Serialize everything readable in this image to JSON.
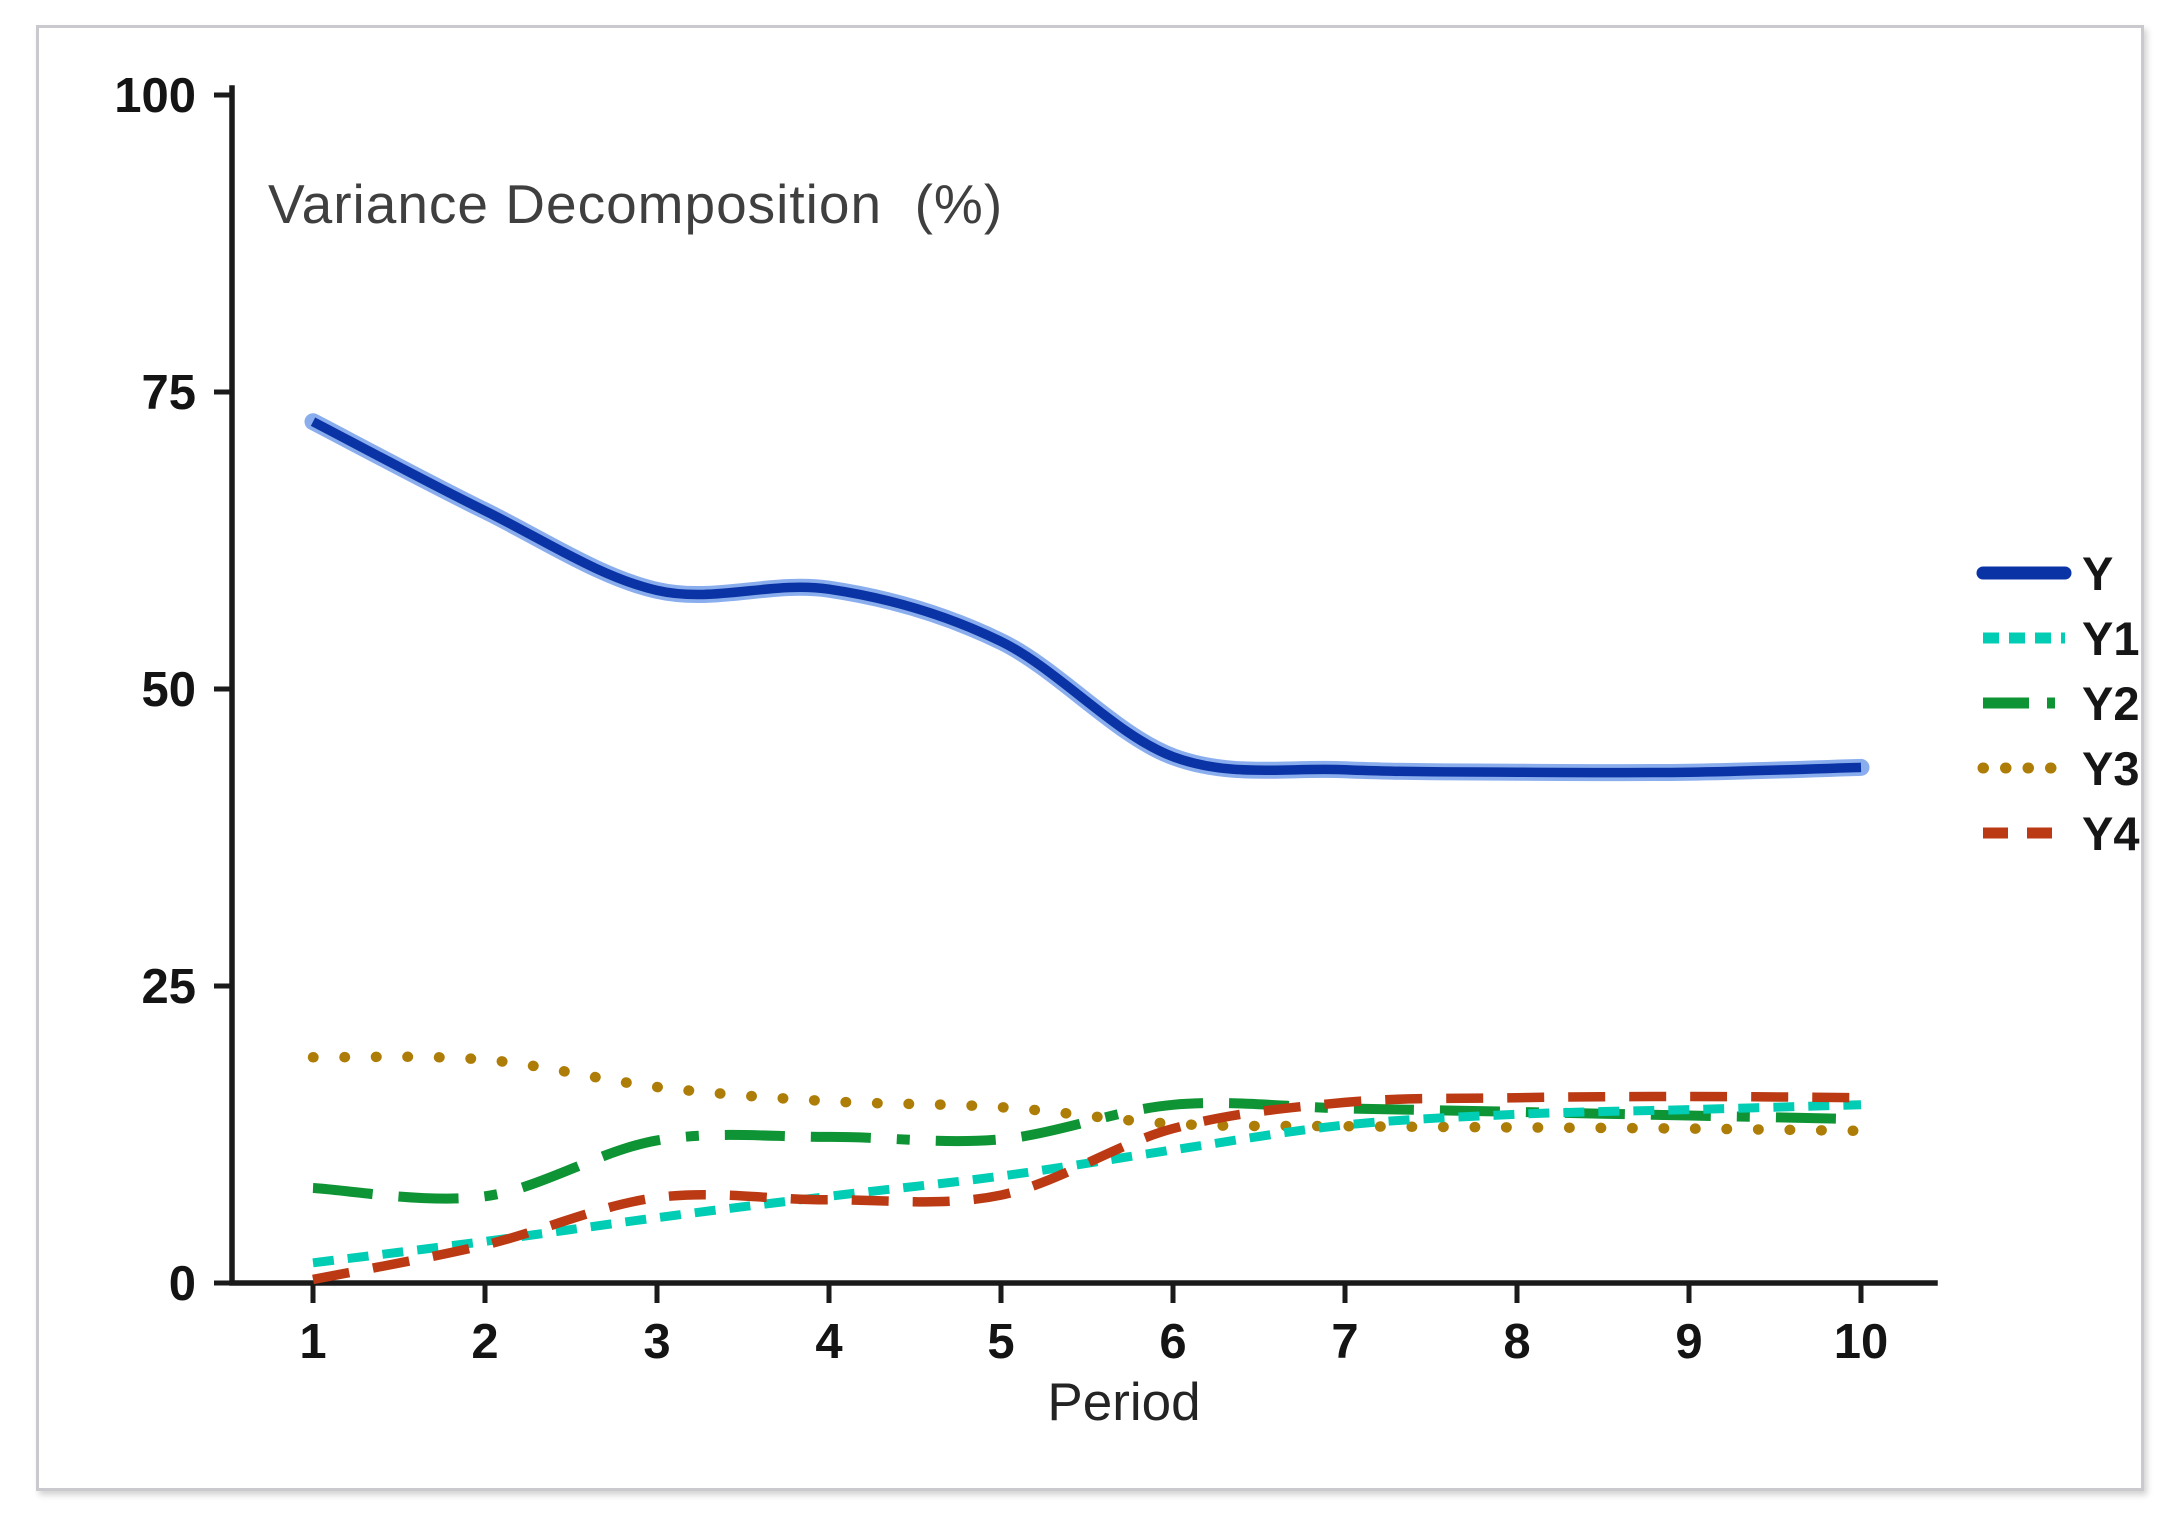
{
  "figure": {
    "title": "Variance Decomposition  (%)",
    "xlabel": "Period"
  },
  "chart_data": {
    "type": "line",
    "title": "Variance Decomposition  (%)",
    "xlabel": "Period",
    "ylabel": "",
    "x": [
      1,
      2,
      3,
      4,
      5,
      6,
      7,
      8,
      9,
      10
    ],
    "xlim": [
      0.55,
      10.45
    ],
    "ylim": [
      0,
      100
    ],
    "yticks": [
      0,
      25,
      50,
      75,
      100
    ],
    "grid": false,
    "legend_position": "right",
    "axis_color": "#1a1a1a",
    "series": [
      {
        "name": "Y",
        "style": "solid",
        "color": "#0a34a6",
        "halo_color": "#6d9ae8",
        "values": [
          72.5,
          65.0,
          58.3,
          58.4,
          54.0,
          44.3,
          43.2,
          43.0,
          43.0,
          43.4
        ]
      },
      {
        "name": "Y1",
        "style": "dashed-short",
        "color": "#00cdb4",
        "values": [
          1.7,
          3.5,
          5.5,
          7.3,
          9.0,
          11.2,
          13.3,
          14.2,
          14.6,
          15.0
        ]
      },
      {
        "name": "Y2",
        "style": "dash-dot",
        "color": "#0e9434",
        "values": [
          8.0,
          7.3,
          12.0,
          12.3,
          12.1,
          15.0,
          14.7,
          14.4,
          14.1,
          13.8
        ]
      },
      {
        "name": "Y3",
        "style": "dotted",
        "color": "#ad7d08",
        "values": [
          19.0,
          18.8,
          16.5,
          15.3,
          14.8,
          13.4,
          13.2,
          13.1,
          13.0,
          12.8
        ]
      },
      {
        "name": "Y4",
        "style": "dashed",
        "color": "#bb3a14",
        "values": [
          0.3,
          3.2,
          7.2,
          7.0,
          7.4,
          13.0,
          15.2,
          15.6,
          15.7,
          15.6
        ]
      }
    ]
  }
}
